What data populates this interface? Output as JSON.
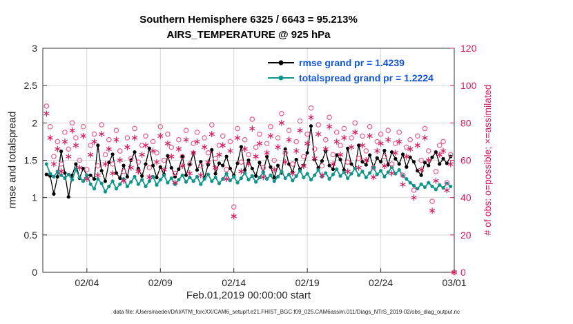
{
  "title": {
    "line1": "Southern Hemisphere 6325 / 6643 = 95.213%",
    "line2": "AIRS_TEMPERATURE @ 925 hPa"
  },
  "legend": [
    {
      "label": "rmse grand pr = 1.4239",
      "color": "#000000"
    },
    {
      "label": "totalspread grand pr = 1.2224",
      "color": "#10958b"
    }
  ],
  "footer": "data file: /Users/raeder/DAI/ATM_forcXX/CAM6_setup/f.e21.FHIST_BGC.f09_025.CAM6assim.011/Diags_NTrS_2019-02/obs_diag_output.nc",
  "colors": {
    "grid": "#d9d9d9",
    "axis": "#333333",
    "tick_text": "#262626",
    "obs": "#d81b60",
    "obs_circle": "#e85c90",
    "legend_text": "#1155dd"
  },
  "chart_data": {
    "type": "line",
    "title": "Southern Hemisphere 6325 / 6643 = 95.213% — AIRS_TEMPERATURE @ 925 hPa",
    "xlabel": "Feb.01,2019 00:00:00 start",
    "ylabel_left": "rmse and totalspread",
    "ylabel_right": "# of obs: o=possible; ×=assimilated",
    "xlim_days": [
      0,
      28
    ],
    "x_start_day": 0.25,
    "x_step_days": 0.25,
    "x_tick_days": [
      3,
      8,
      13,
      18,
      23,
      28
    ],
    "x_tick_labels": [
      "02/04",
      "02/09",
      "02/14",
      "02/19",
      "02/24",
      "03/01"
    ],
    "ylim_left": [
      0,
      3
    ],
    "yticks_left": [
      0,
      0.5,
      1,
      1.5,
      2,
      2.5,
      3
    ],
    "ylim_right": [
      0,
      120
    ],
    "yticks_right": [
      0,
      20,
      40,
      60,
      80,
      100,
      120
    ],
    "grid": true,
    "legend_position": "top-center-inside",
    "series": [
      {
        "name": "rmse",
        "axis": "left",
        "style": "line+marker",
        "marker": "filled-circle",
        "color": "#000000",
        "grand_pr": 1.4239,
        "values": [
          1.31,
          1.29,
          1.05,
          1.28,
          1.62,
          1.33,
          1.01,
          1.3,
          1.45,
          1.26,
          1.39,
          1.3,
          1.3,
          1.25,
          1.7,
          1.36,
          1.22,
          1.47,
          1.58,
          1.33,
          1.26,
          1.43,
          1.28,
          1.5,
          1.61,
          1.39,
          1.29,
          1.45,
          1.66,
          1.43,
          1.27,
          1.41,
          1.31,
          1.56,
          1.4,
          1.28,
          1.38,
          1.55,
          1.3,
          1.44,
          1.6,
          1.37,
          1.48,
          1.26,
          1.44,
          1.64,
          1.32,
          1.46,
          1.43,
          1.55,
          1.39,
          1.3,
          1.46,
          1.68,
          1.37,
          1.5,
          1.39,
          1.29,
          1.47,
          1.34,
          1.55,
          1.41,
          1.27,
          1.43,
          1.33,
          1.65,
          1.45,
          1.34,
          1.51,
          1.38,
          1.43,
          1.6,
          1.96,
          1.51,
          1.4,
          1.49,
          1.62,
          1.43,
          1.38,
          1.57,
          1.51,
          1.37,
          1.66,
          1.45,
          1.39,
          1.7,
          1.48,
          1.44,
          1.57,
          1.41,
          1.53,
          1.48,
          1.63,
          1.44,
          1.61,
          1.52,
          1.45,
          1.58,
          1.41,
          1.54,
          1.48,
          1.36,
          1.3,
          1.47,
          1.43,
          1.54,
          1.61,
          1.45,
          1.52,
          1.46,
          1.55,
          null
        ]
      },
      {
        "name": "totalspread",
        "axis": "left",
        "style": "line+marker",
        "marker": "filled-circle",
        "color": "#10958b",
        "grand_pr": 1.2224,
        "values": [
          1.45,
          1.32,
          1.28,
          1.35,
          1.3,
          1.26,
          1.31,
          1.24,
          1.38,
          1.27,
          1.22,
          1.3,
          1.18,
          1.12,
          1.25,
          1.19,
          1.08,
          1.15,
          1.22,
          1.12,
          1.18,
          1.25,
          1.15,
          1.21,
          1.28,
          1.18,
          1.24,
          1.15,
          1.22,
          1.28,
          1.17,
          1.24,
          1.3,
          1.2,
          1.26,
          1.18,
          1.24,
          1.3,
          1.21,
          1.27,
          1.22,
          1.28,
          1.18,
          1.25,
          1.31,
          1.22,
          1.27,
          1.19,
          1.25,
          1.32,
          1.23,
          1.28,
          1.2,
          1.26,
          1.33,
          1.24,
          1.29,
          1.21,
          1.27,
          1.34,
          1.25,
          1.3,
          1.22,
          1.28,
          1.35,
          1.26,
          1.31,
          1.23,
          1.29,
          1.36,
          1.27,
          1.32,
          1.24,
          1.3,
          1.37,
          1.28,
          1.33,
          1.25,
          1.31,
          1.38,
          1.29,
          1.34,
          1.26,
          1.32,
          1.39,
          1.3,
          1.35,
          1.27,
          1.33,
          1.4,
          1.31,
          1.36,
          1.28,
          1.34,
          1.41,
          1.32,
          1.37,
          1.29,
          1.25,
          1.2,
          1.16,
          1.12,
          1.18,
          1.14,
          1.2,
          1.15,
          1.11,
          1.17,
          1.13,
          1.19,
          1.15,
          null
        ]
      },
      {
        "name": "possible",
        "axis": "right",
        "style": "open-circle",
        "color": "#e85c90",
        "values": [
          89,
          78,
          62,
          70,
          58,
          75,
          66,
          80,
          72,
          60,
          78,
          55,
          68,
          74,
          57,
          79,
          63,
          71,
          58,
          76,
          65,
          54,
          72,
          61,
          77,
          59,
          68,
          73,
          56,
          70,
          64,
          78,
          60,
          74,
          67,
          53,
          71,
          62,
          76,
          58,
          69,
          75,
          57,
          72,
          64,
          79,
          61,
          68,
          73,
          55,
          70,
          35,
          77,
          59,
          71,
          63,
          82,
          67,
          74,
          56,
          69,
          78,
          60,
          72,
          85,
          64,
          76,
          58,
          70,
          81,
          62,
          74,
          88,
          66,
          79,
          57,
          71,
          83,
          63,
          75,
          68,
          77,
          59,
          72,
          80,
          61,
          73,
          65,
          78,
          56,
          70,
          74,
          62,
          76,
          58,
          69,
          75,
          52,
          67,
          71,
          44,
          73,
          60,
          77,
          65,
          38,
          54,
          68,
          70,
          48,
          63,
          0
        ]
      },
      {
        "name": "assimilated",
        "axis": "right",
        "style": "asterisk",
        "color": "#d81b60",
        "values": [
          85,
          72,
          58,
          66,
          54,
          70,
          62,
          76,
          68,
          56,
          73,
          50,
          63,
          70,
          52,
          74,
          58,
          66,
          53,
          71,
          60,
          49,
          67,
          56,
          72,
          54,
          63,
          68,
          51,
          65,
          59,
          73,
          55,
          69,
          62,
          48,
          66,
          57,
          71,
          53,
          64,
          70,
          52,
          67,
          59,
          74,
          56,
          63,
          68,
          50,
          65,
          30,
          72,
          54,
          66,
          58,
          77,
          62,
          69,
          51,
          64,
          73,
          55,
          67,
          80,
          59,
          71,
          53,
          65,
          76,
          57,
          69,
          83,
          61,
          74,
          52,
          66,
          78,
          58,
          70,
          63,
          72,
          54,
          67,
          75,
          56,
          68,
          60,
          73,
          51,
          65,
          69,
          57,
          71,
          53,
          64,
          70,
          47,
          62,
          66,
          40,
          68,
          55,
          72,
          60,
          33,
          49,
          63,
          65,
          44,
          58,
          0
        ]
      }
    ]
  }
}
